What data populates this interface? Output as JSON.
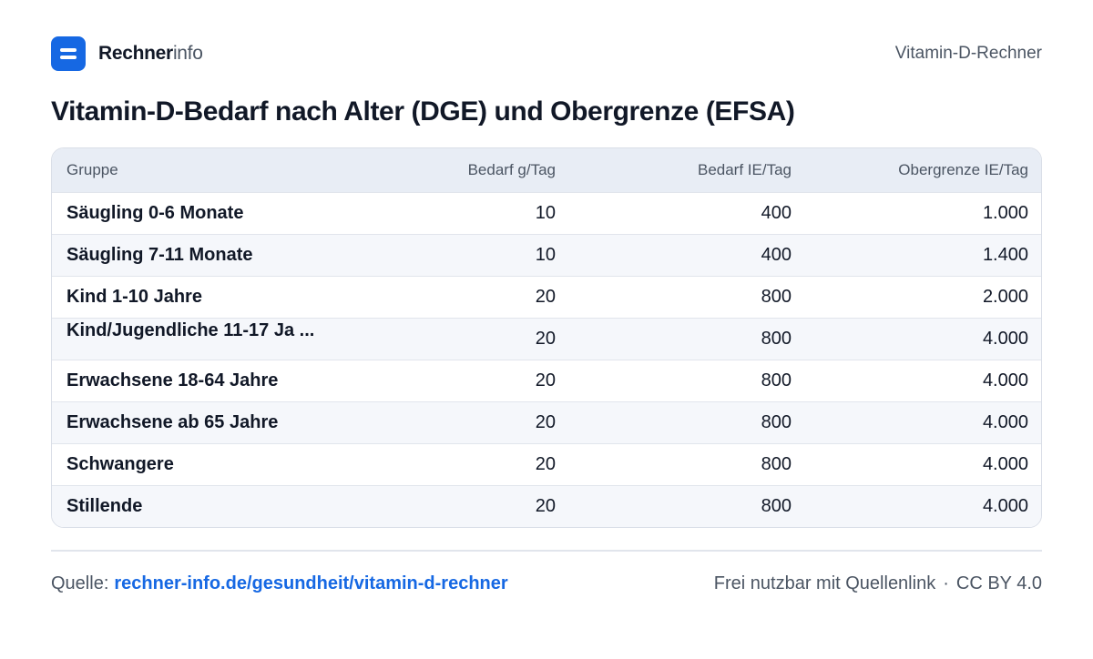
{
  "header": {
    "brand_strong": "Rechner",
    "brand_light": "info",
    "page_tag": "Vitamin-D-Rechner"
  },
  "title": "Vitamin-D-Bedarf nach Alter (DGE) und Obergrenze (EFSA)",
  "table": {
    "columns": [
      "Gruppe",
      "Bedarf  g/Tag",
      "Bedarf IE/Tag",
      "Obergrenze IE/Tag"
    ],
    "rows": [
      [
        "Säugling 0-6 Monate",
        "10",
        "400",
        "1.000"
      ],
      [
        "Säugling 7-11 Monate",
        "10",
        "400",
        "1.400"
      ],
      [
        "Kind 1-10 Jahre",
        "20",
        "800",
        "2.000"
      ],
      [
        "Kind/Jugendliche 11-17 Ja ...",
        "20",
        "800",
        "4.000"
      ],
      [
        "Erwachsene 18-64 Jahre",
        "20",
        "800",
        "4.000"
      ],
      [
        "Erwachsene ab 65 Jahre",
        "20",
        "800",
        "4.000"
      ],
      [
        "Schwangere",
        "20",
        "800",
        "4.000"
      ],
      [
        "Stillende",
        "20",
        "800",
        "4.000"
      ]
    ]
  },
  "footer": {
    "source_label": "Quelle:",
    "source_link": "rechner-info.de/gesundheit/vitamin-d-rechner",
    "license_text": "Frei nutzbar mit Quellenlink",
    "license_sep": "·",
    "license_name": "CC BY 4.0"
  },
  "colors": {
    "accent": "#1668e3",
    "header_row": "#e8edf5",
    "stripe_row": "#f5f7fb",
    "text_primary": "#111827",
    "text_muted": "#4b5563"
  }
}
